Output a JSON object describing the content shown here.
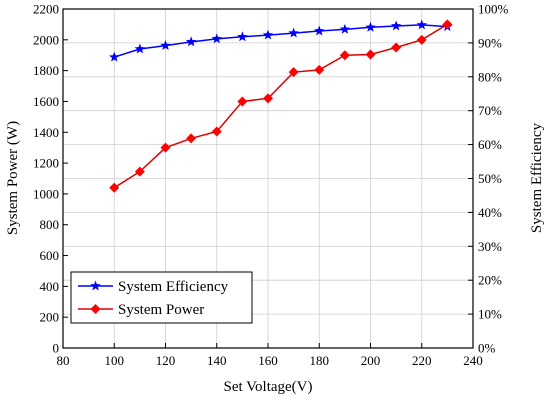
{
  "chart_data": {
    "type": "line",
    "title": "",
    "xlabel": "Set Voltage(V)",
    "ylabel_left": "System Power (W)",
    "ylabel_right": "System Efficiency",
    "xlim": [
      80,
      240
    ],
    "ylim_left": [
      0,
      2200
    ],
    "ylim_right": [
      0,
      100
    ],
    "x_ticks": [
      80,
      100,
      120,
      140,
      160,
      180,
      200,
      220,
      240
    ],
    "y_left_ticks": [
      0,
      200,
      400,
      600,
      800,
      1000,
      1200,
      1400,
      1600,
      1800,
      2000,
      2200
    ],
    "y_right_ticks": [
      "0%",
      "10%",
      "20%",
      "30%",
      "40%",
      "50%",
      "60%",
      "70%",
      "80%",
      "90%",
      "100%"
    ],
    "grid": true,
    "legend_position": "bottom-left",
    "x": [
      100,
      110,
      120,
      130,
      140,
      150,
      160,
      170,
      180,
      190,
      200,
      210,
      220,
      230
    ],
    "series": [
      {
        "name": "System Efficiency",
        "axis": "right",
        "marker": "star",
        "color": "#0000ff",
        "values": [
          85.8,
          88.2,
          89.2,
          90.3,
          91.2,
          91.8,
          92.3,
          92.9,
          93.5,
          94.0,
          94.6,
          95.0,
          95.3,
          94.8
        ]
      },
      {
        "name": "System Power",
        "axis": "left",
        "marker": "diamond",
        "color": "#ff0000",
        "line_color": "#dd0000",
        "values": [
          1040,
          1145,
          1300,
          1360,
          1405,
          1600,
          1620,
          1790,
          1805,
          1900,
          1905,
          1950,
          2000,
          2100
        ]
      }
    ]
  }
}
